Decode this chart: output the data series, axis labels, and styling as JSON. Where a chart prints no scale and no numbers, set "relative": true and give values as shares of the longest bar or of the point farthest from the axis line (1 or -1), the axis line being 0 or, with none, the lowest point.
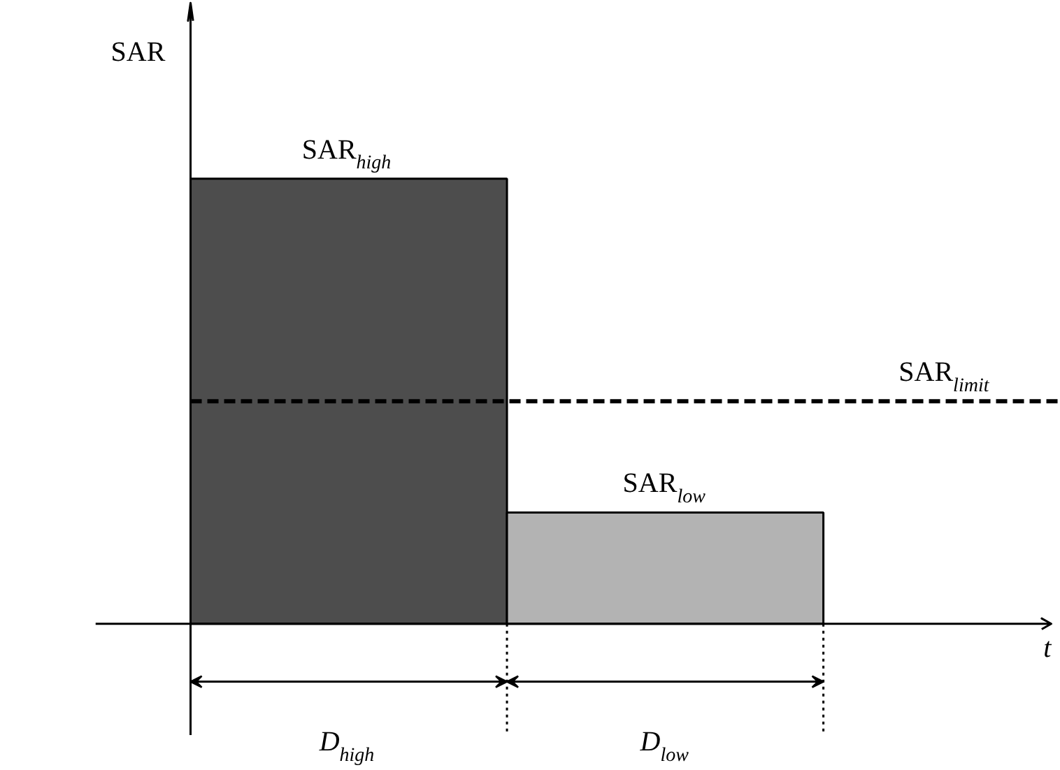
{
  "chart_data": {
    "type": "bar",
    "relative": true,
    "categories": [
      null,
      null
    ],
    "colors": [
      "#4d4d4d",
      "#b3b3b3"
    ],
    "values": [
      1,
      0.25
    ],
    "ylabel": "SAR",
    "xlabel": "t",
    "ref_lines": [
      {
        "axis": "y",
        "value": 0.5,
        "label": "SAR$_{limit}$",
        "line_style": "dashed",
        "color": "#000000"
      }
    ],
    "annotations": [
      {
        "text": "SAR$_{high}$",
        "y": 1
      },
      {
        "text": "SAR$_{low}$",
        "y": 0.25
      },
      "D$_{high}$",
      "D$_{low}$"
    ],
    "grid": false
  }
}
